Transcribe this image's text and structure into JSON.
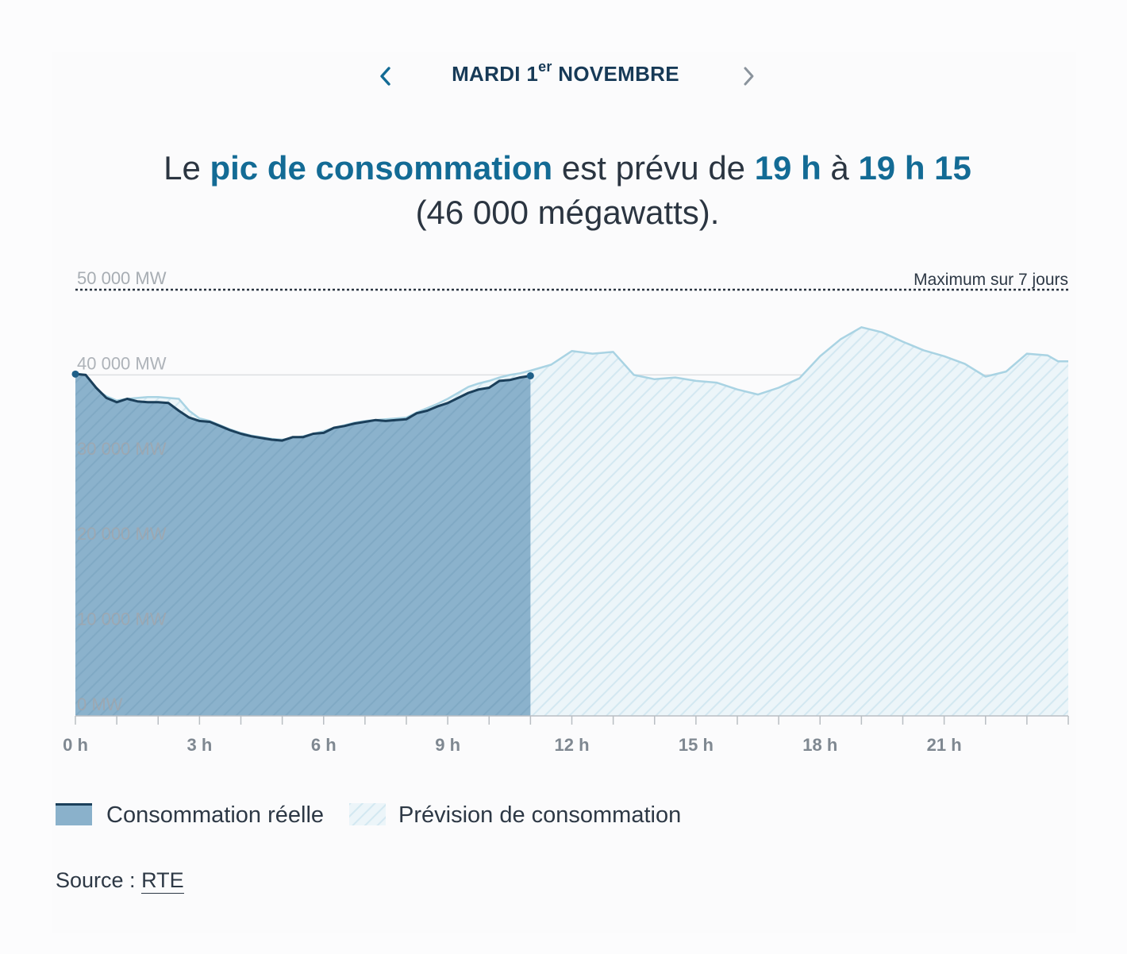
{
  "date_nav": {
    "prev_icon": "chevron-left-icon",
    "next_icon": "chevron-right-icon",
    "weekday_day": "MARDI 1",
    "day_suffix": "er",
    "month": "NOVEMBRE"
  },
  "headline": {
    "part1": "Le ",
    "highlight": "pic de consommation",
    "part2": " est prévu de ",
    "time_start": "19 h",
    "part3": " à ",
    "time_end": "19 h 15",
    "line2": "(46 000 mégawatts)."
  },
  "colors": {
    "actual_fill": "#8ab1cb",
    "actual_line": "#1b3f5a",
    "forecast_fill": "#e9f3f8",
    "forecast_line": "#a9d3e3",
    "accent": "#136b95"
  },
  "chart_data": {
    "type": "area",
    "xlim": [
      0,
      24
    ],
    "ylim": [
      0,
      50000
    ],
    "y_ticks": [
      {
        "value": 0,
        "label": "0 MW"
      },
      {
        "value": 10000,
        "label": "10 000 MW"
      },
      {
        "value": 20000,
        "label": "20 000 MW"
      },
      {
        "value": 30000,
        "label": "30 000 MW"
      },
      {
        "value": 40000,
        "label": "40 000 MW"
      },
      {
        "value": 50000,
        "label": "50 000 MW"
      }
    ],
    "x_ticks": [
      {
        "value": 0,
        "label": "0 h"
      },
      {
        "value": 3,
        "label": "3 h"
      },
      {
        "value": 6,
        "label": "6 h"
      },
      {
        "value": 9,
        "label": "9 h"
      },
      {
        "value": 12,
        "label": "12 h"
      },
      {
        "value": 15,
        "label": "15 h"
      },
      {
        "value": 18,
        "label": "18 h"
      },
      {
        "value": 21,
        "label": "21 h"
      }
    ],
    "max_line": {
      "value": 50000,
      "label": "Maximum sur 7 jours"
    },
    "series": [
      {
        "name": "Consommation réelle",
        "x": [
          0,
          0.25,
          0.5,
          0.75,
          1,
          1.25,
          1.5,
          1.75,
          2,
          2.25,
          2.5,
          2.75,
          3,
          3.25,
          3.5,
          3.75,
          4,
          4.25,
          4.5,
          4.75,
          5,
          5.25,
          5.5,
          5.75,
          6,
          6.25,
          6.5,
          6.75,
          7,
          7.25,
          7.5,
          7.75,
          8,
          8.25,
          8.5,
          8.75,
          9,
          9.25,
          9.5,
          9.75,
          10,
          10.25,
          10.5,
          10.75,
          11
        ],
        "values": [
          40100,
          40000,
          38500,
          37300,
          36800,
          37200,
          36900,
          36800,
          36800,
          36700,
          35800,
          35000,
          34600,
          34500,
          34000,
          33500,
          33100,
          32800,
          32600,
          32400,
          32300,
          32700,
          32700,
          33100,
          33200,
          33800,
          34000,
          34300,
          34500,
          34700,
          34600,
          34700,
          34800,
          35500,
          35800,
          36300,
          36700,
          37300,
          37900,
          38300,
          38500,
          39300,
          39400,
          39700,
          39900
        ]
      },
      {
        "name": "Prévision de consommation",
        "x": [
          0,
          0.25,
          0.5,
          0.75,
          1,
          1.25,
          1.5,
          1.75,
          2,
          2.25,
          2.5,
          2.75,
          3,
          3.25,
          3.5,
          3.75,
          4,
          4.25,
          4.5,
          4.75,
          5,
          5.25,
          5.5,
          5.75,
          6,
          6.25,
          6.5,
          6.75,
          7,
          7.25,
          7.5,
          7.75,
          8,
          8.25,
          8.5,
          8.75,
          9,
          9.25,
          9.5,
          9.75,
          10,
          10.25,
          10.5,
          10.75,
          11,
          11.5,
          12,
          12.5,
          13,
          13.5,
          14,
          14.5,
          15,
          15.5,
          16,
          16.5,
          17,
          17.5,
          18,
          18.5,
          19,
          19.5,
          20,
          20.5,
          21,
          21.5,
          22,
          22.5,
          23,
          23.5,
          23.75,
          24
        ],
        "values": [
          40200,
          40000,
          38300,
          37500,
          37000,
          37200,
          37300,
          37400,
          37400,
          37300,
          37200,
          35800,
          34900,
          34600,
          34100,
          33600,
          33200,
          32900,
          32700,
          32500,
          32400,
          32600,
          32800,
          33100,
          33400,
          33800,
          34100,
          34400,
          34600,
          34700,
          34800,
          34900,
          35000,
          35600,
          36100,
          36600,
          37200,
          37900,
          38600,
          39000,
          39300,
          39700,
          40000,
          40200,
          40500,
          41200,
          42800,
          42500,
          42700,
          40000,
          39500,
          39700,
          39300,
          39100,
          38300,
          37700,
          38500,
          39600,
          42200,
          44200,
          45600,
          45000,
          43900,
          42900,
          42200,
          41300,
          39800,
          40400,
          42500,
          42300,
          41600,
          41600
        ]
      }
    ]
  },
  "legend": {
    "actual_label": "Consommation réelle",
    "forecast_label": "Prévision de consommation"
  },
  "source": {
    "prefix": "Source : ",
    "link_text": "RTE"
  }
}
